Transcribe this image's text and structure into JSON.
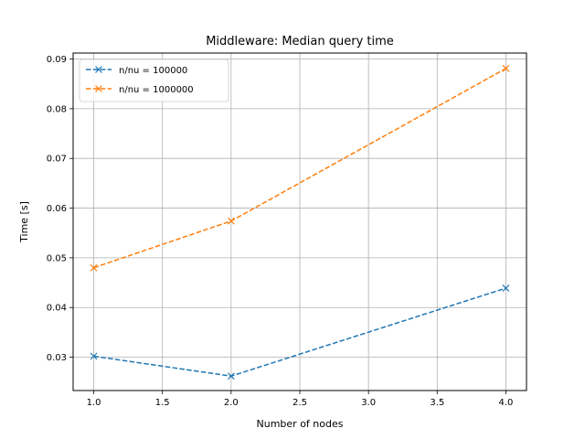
{
  "chart_data": {
    "type": "line",
    "title": "Middleware: Median query time",
    "xlabel": "Number of nodes",
    "ylabel": "Time [s]",
    "xlim": [
      0.85,
      4.15
    ],
    "ylim": [
      0.0233,
      0.0912
    ],
    "xticks": [
      1.0,
      1.5,
      2.0,
      2.5,
      3.0,
      3.5,
      4.0
    ],
    "xtick_labels": [
      "1.0",
      "1.5",
      "2.0",
      "2.5",
      "3.0",
      "3.5",
      "4.0"
    ],
    "yticks": [
      0.03,
      0.04,
      0.05,
      0.06,
      0.07,
      0.08,
      0.09
    ],
    "ytick_labels": [
      "0.03",
      "0.04",
      "0.05",
      "0.06",
      "0.07",
      "0.08",
      "0.09"
    ],
    "grid": true,
    "legend_position": "top-left",
    "series": [
      {
        "name": "n/nu = 100000",
        "color": "#1f77b4",
        "linestyle": "dashed",
        "marker": "x",
        "x": [
          1,
          2,
          4
        ],
        "y": [
          0.0302,
          0.0262,
          0.0439
        ]
      },
      {
        "name": "n/nu = 1000000",
        "color": "#ff7f0e",
        "linestyle": "dashed",
        "marker": "x",
        "x": [
          1,
          2,
          4
        ],
        "y": [
          0.048,
          0.0574,
          0.0881
        ]
      }
    ]
  }
}
